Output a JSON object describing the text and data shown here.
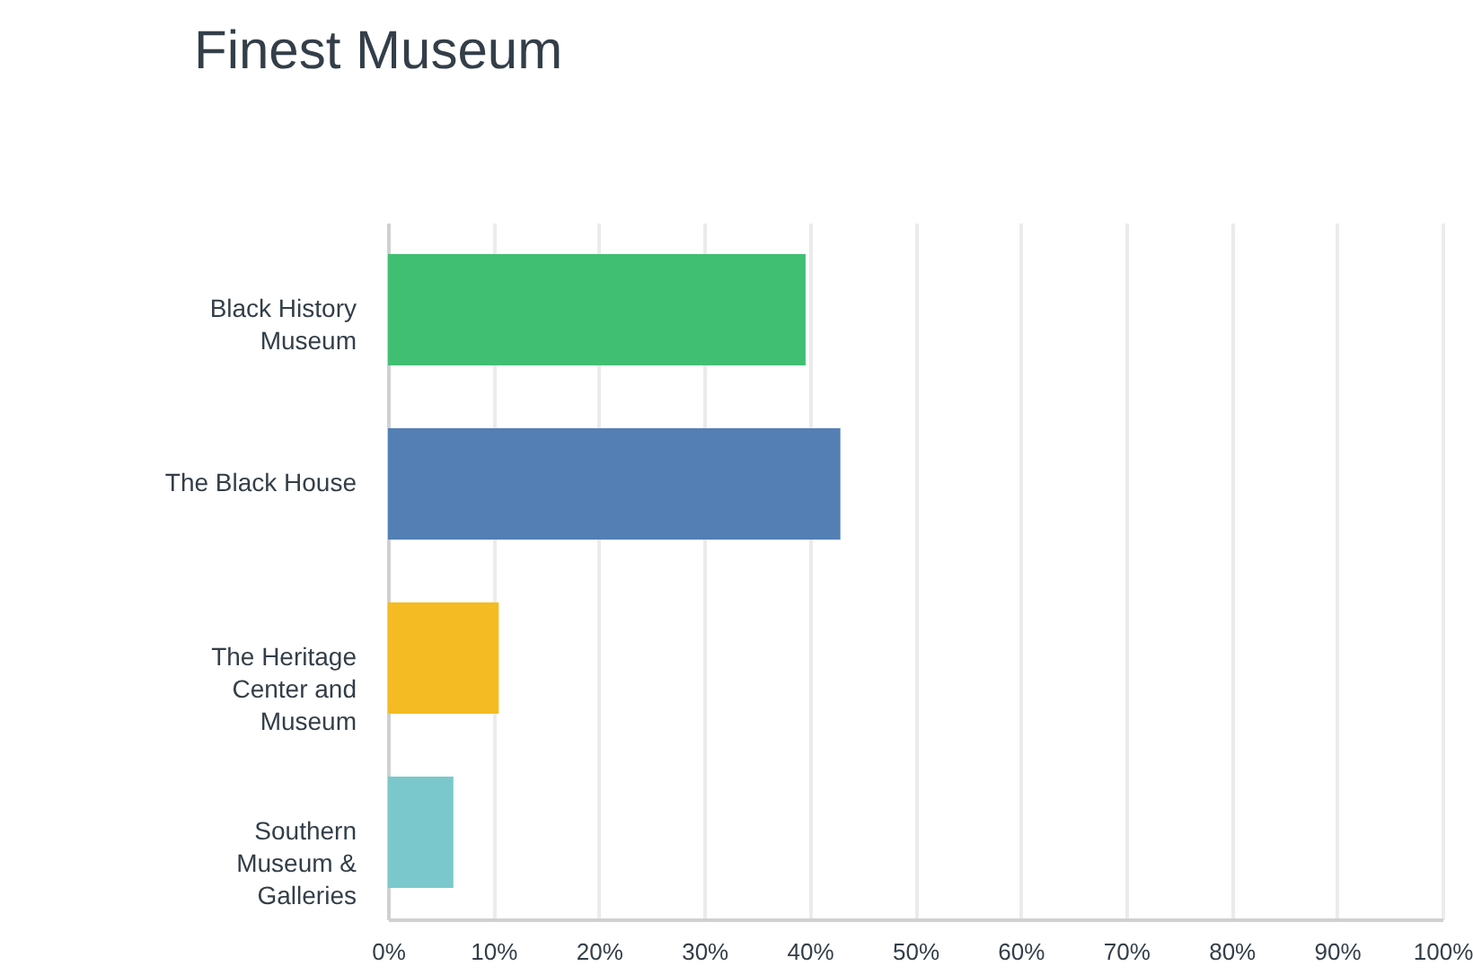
{
  "chart_data": {
    "type": "bar",
    "orientation": "horizontal",
    "title": "Finest Museum",
    "categories": [
      "Black History Museum",
      "The Black House",
      "The Heritage Center and Museum",
      "Southern Museum & Galleries"
    ],
    "values": [
      39.6,
      42.9,
      10.5,
      6.2
    ],
    "colors": [
      "#40bf73",
      "#537fb5",
      "#f5bb22",
      "#7ac8cb"
    ],
    "xlim": [
      0,
      100
    ],
    "xticks": [
      {
        "value": 0,
        "label": "0%"
      },
      {
        "value": 10,
        "label": "10%"
      },
      {
        "value": 20,
        "label": "20%"
      },
      {
        "value": 30,
        "label": "30%"
      },
      {
        "value": 40,
        "label": "40%"
      },
      {
        "value": 50,
        "label": "50%"
      },
      {
        "value": 60,
        "label": "60%"
      },
      {
        "value": 70,
        "label": "70%"
      },
      {
        "value": 80,
        "label": "80%"
      },
      {
        "value": 90,
        "label": "90%"
      },
      {
        "value": 100,
        "label": "100%"
      }
    ],
    "grid": "x"
  }
}
